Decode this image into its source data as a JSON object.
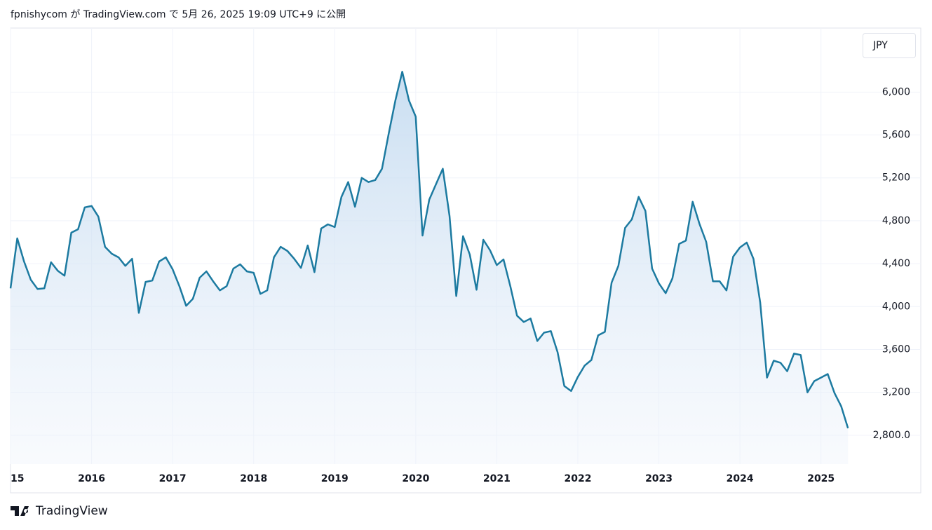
{
  "header": {
    "text": "fpnishycom が TradingView.com で 5月 26, 2025 19:09 UTC+9 に公開"
  },
  "currency_label": "JPY",
  "footer": {
    "brand": "TradingView"
  },
  "chart_data": {
    "type": "area",
    "color": "#1c7aa0",
    "grid": true,
    "values": [
      4170,
      4636,
      4420,
      4250,
      4164,
      4170,
      4413,
      4334,
      4288,
      4689,
      4721,
      4925,
      4938,
      4839,
      4557,
      4492,
      4459,
      4380,
      4446,
      3941,
      4230,
      4243,
      4420,
      4459,
      4348,
      4190,
      4007,
      4072,
      4269,
      4328,
      4236,
      4151,
      4190,
      4354,
      4394,
      4328,
      4315,
      4118,
      4151,
      4459,
      4557,
      4518,
      4446,
      4361,
      4570,
      4321,
      4728,
      4767,
      4741,
      5023,
      5161,
      4931,
      5200,
      5161,
      5180,
      5285,
      5613,
      5928,
      6190,
      5921,
      5771,
      4662,
      4997,
      5141,
      5285,
      4846,
      4098,
      4656,
      4485,
      4157,
      4623,
      4525,
      4387,
      4439,
      4190,
      3915,
      3856,
      3889,
      3679,
      3757,
      3771,
      3574,
      3259,
      3213,
      3344,
      3449,
      3502,
      3731,
      3764,
      4223,
      4380,
      4734,
      4813,
      5023,
      4892,
      4354,
      4216,
      4125,
      4262,
      4584,
      4616,
      4977,
      4774,
      4603,
      4236,
      4236,
      4151,
      4466,
      4551,
      4597,
      4446,
      4039,
      3338,
      3495,
      3476,
      3397,
      3561,
      3548,
      3200,
      3305,
      3338,
      3371,
      3193,
      3069,
      2866
    ],
    "xlim": [
      0,
      124.6
    ],
    "xticks": [
      {
        "value": 0,
        "label": "15"
      },
      {
        "value": 12,
        "label": "2016"
      },
      {
        "value": 24,
        "label": "2017"
      },
      {
        "value": 36,
        "label": "2018"
      },
      {
        "value": 48,
        "label": "2019"
      },
      {
        "value": 60,
        "label": "2020"
      },
      {
        "value": 72,
        "label": "2021"
      },
      {
        "value": 84,
        "label": "2022"
      },
      {
        "value": 96,
        "label": "2023"
      },
      {
        "value": 108,
        "label": "2024"
      },
      {
        "value": 120,
        "label": "2025"
      }
    ],
    "ylim": [
      2531,
      6584
    ],
    "yticks": [
      {
        "value": 2800,
        "label": "2,800.0"
      },
      {
        "value": 3200,
        "label": "3,200"
      },
      {
        "value": 3600,
        "label": "3,600"
      },
      {
        "value": 4000,
        "label": "4,000"
      },
      {
        "value": 4400,
        "label": "4,400"
      },
      {
        "value": 4800,
        "label": "4,800"
      },
      {
        "value": 5200,
        "label": "5,200"
      },
      {
        "value": 5600,
        "label": "5,600"
      },
      {
        "value": 6000,
        "label": "6,000"
      }
    ]
  }
}
